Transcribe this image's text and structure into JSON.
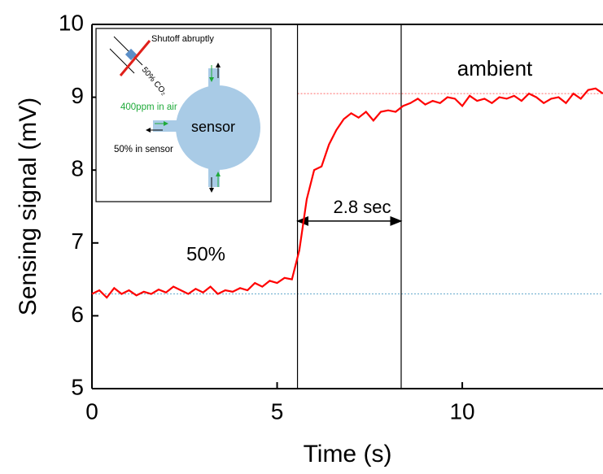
{
  "chart_data": {
    "type": "line",
    "x_label": "Time (s)",
    "y_label": "Sensing signal (mV)",
    "xlim": [
      0,
      13.8
    ],
    "ylim": [
      5,
      10
    ],
    "xticks": [
      0,
      5,
      10
    ],
    "yticks": [
      5,
      6,
      7,
      8,
      9,
      10
    ],
    "x": [
      0,
      0.2,
      0.4,
      0.6,
      0.8,
      1.0,
      1.2,
      1.4,
      1.6,
      1.8,
      2.0,
      2.2,
      2.4,
      2.6,
      2.8,
      3.0,
      3.2,
      3.4,
      3.6,
      3.8,
      4.0,
      4.2,
      4.4,
      4.6,
      4.8,
      5.0,
      5.2,
      5.4,
      5.6,
      5.8,
      6.0,
      6.2,
      6.4,
      6.6,
      6.8,
      7.0,
      7.2,
      7.4,
      7.6,
      7.8,
      8.0,
      8.2,
      8.4,
      8.6,
      8.8,
      9.0,
      9.2,
      9.4,
      9.6,
      9.8,
      10.0,
      10.2,
      10.4,
      10.6,
      10.8,
      11.0,
      11.2,
      11.4,
      11.6,
      11.8,
      12.0,
      12.2,
      12.4,
      12.6,
      12.8,
      13.0,
      13.2,
      13.4,
      13.6,
      13.8
    ],
    "series": [
      {
        "color": "#ff0000",
        "values": [
          6.3,
          6.35,
          6.25,
          6.38,
          6.3,
          6.35,
          6.28,
          6.33,
          6.3,
          6.36,
          6.32,
          6.4,
          6.35,
          6.3,
          6.37,
          6.32,
          6.4,
          6.3,
          6.35,
          6.33,
          6.38,
          6.35,
          6.45,
          6.4,
          6.48,
          6.45,
          6.52,
          6.5,
          6.9,
          7.6,
          8.0,
          8.05,
          8.35,
          8.55,
          8.7,
          8.78,
          8.72,
          8.8,
          8.68,
          8.8,
          8.82,
          8.8,
          8.88,
          8.92,
          8.98,
          8.9,
          8.95,
          8.92,
          9.0,
          8.98,
          8.88,
          9.02,
          8.95,
          8.98,
          8.92,
          9.0,
          8.98,
          9.02,
          8.95,
          9.05,
          9.0,
          8.92,
          8.98,
          9.0,
          8.92,
          9.05,
          8.98,
          9.1,
          9.12,
          9.05
        ]
      }
    ],
    "reference_lines": [
      {
        "value": 9.05,
        "color": "#ff6666"
      },
      {
        "value": 6.3,
        "color": "#66aacc"
      }
    ],
    "vertical_lines": [
      5.55,
      8.35
    ],
    "annotations": [
      "50%",
      "ambient",
      "2.8 sec"
    ],
    "inset": {
      "texts": [
        "Shutoff abruptly",
        "50% CO₂",
        "400ppm in air",
        "sensor",
        "50% in sensor"
      ]
    }
  }
}
